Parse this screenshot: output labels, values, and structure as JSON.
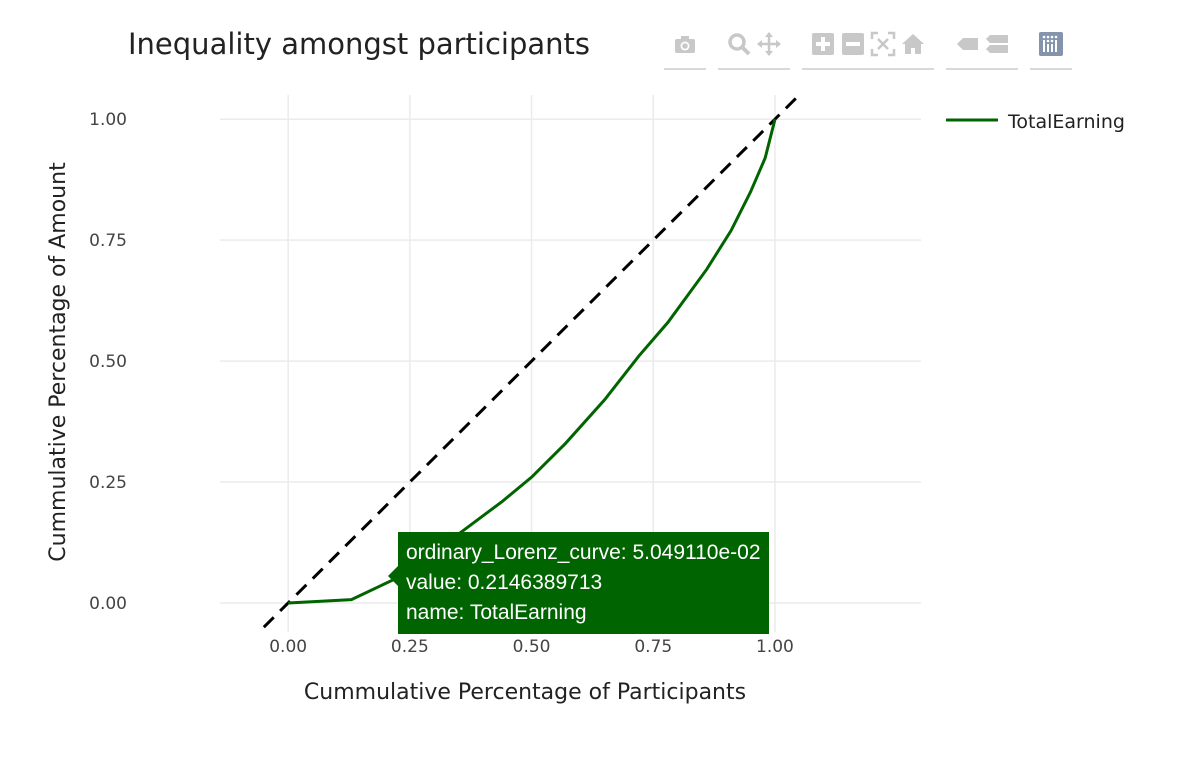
{
  "modebar": {
    "groups": [
      [
        {
          "name": "camera-icon",
          "title": "Download plot as a png"
        }
      ],
      [
        {
          "name": "zoom-icon",
          "title": "Zoom"
        },
        {
          "name": "pan-icon",
          "title": "Pan"
        }
      ],
      [
        {
          "name": "zoom-in-icon",
          "title": "Zoom in"
        },
        {
          "name": "zoom-out-icon",
          "title": "Zoom out"
        },
        {
          "name": "autoscale-icon",
          "title": "Autoscale"
        },
        {
          "name": "home-icon",
          "title": "Reset axes"
        }
      ],
      [
        {
          "name": "spike-lines-icon",
          "title": "Show closest data on hover"
        },
        {
          "name": "compare-icon",
          "title": "Compare data on hover"
        }
      ],
      [
        {
          "name": "plotly-logo-icon",
          "title": "Produced with Plotly"
        }
      ]
    ],
    "icon_color": "#c8c8c8",
    "logo_color": "#8494ad"
  },
  "tooltip": {
    "line1": "ordinary_Lorenz_curve: 5.049110e-02",
    "line2": "value: 0.2146389713",
    "line3": "name: TotalEarning",
    "color": "#006400"
  },
  "chart_data": {
    "type": "line",
    "title": "Inequality amongst participants",
    "xlabel": "Cummulative Percentage of Participants",
    "ylabel": "Cummulative Percentage of Amount",
    "xlim": [
      -0.14,
      1.3
    ],
    "ylim": [
      -0.06,
      1.05
    ],
    "xticks": [
      0,
      0.25,
      0.5,
      0.75,
      1
    ],
    "xtick_labels": [
      "0.00",
      "0.25",
      "0.50",
      "0.75",
      "1.00"
    ],
    "yticks": [
      0,
      0.25,
      0.5,
      0.75,
      1
    ],
    "ytick_labels": [
      "0.00",
      "0.25",
      "0.50",
      "0.75",
      "1.00"
    ],
    "grid": true,
    "legend_position": "top-right",
    "series": [
      {
        "name": "TotalEarning",
        "color": "#006400",
        "x": [
          0,
          0.13,
          0.22,
          0.28,
          0.36,
          0.44,
          0.5,
          0.57,
          0.65,
          0.72,
          0.78,
          0.86,
          0.91,
          0.95,
          0.98,
          1.0
        ],
        "y": [
          0,
          0.007,
          0.05,
          0.09,
          0.15,
          0.21,
          0.26,
          0.33,
          0.42,
          0.51,
          0.58,
          0.69,
          0.77,
          0.85,
          0.92,
          1.0
        ]
      }
    ],
    "equality_line": {
      "x": [
        -0.05,
        1.05
      ],
      "y": [
        -0.05,
        1.05
      ],
      "color": "#000000",
      "dash": "dashed"
    }
  }
}
